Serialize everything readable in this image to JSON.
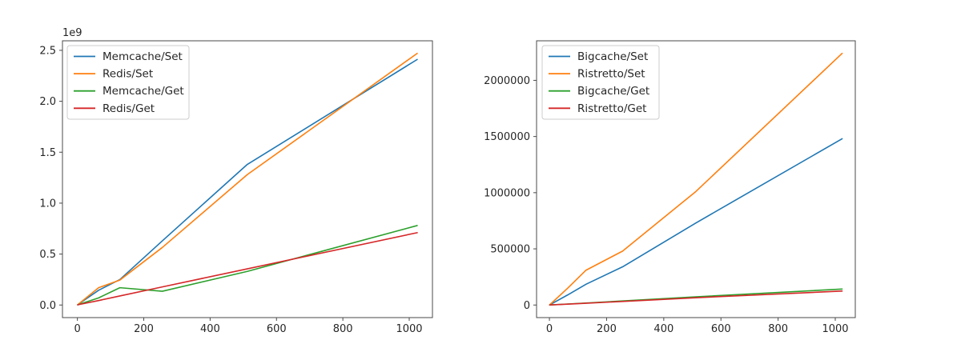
{
  "figure": {
    "background": "#ffffff",
    "text_color": "#262626",
    "spine_color": "#4a4a4a",
    "legend_border_color": "#cccccc",
    "legend_background": "rgba(255,255,255,0.85)"
  },
  "chart_data": [
    {
      "type": "line",
      "title": "",
      "offset_label": "1e9",
      "xlabel": "",
      "ylabel": "",
      "legend_position": "upper left",
      "grid": false,
      "xlim": [
        -45,
        1070
      ],
      "ylim": [
        -123500000,
        2593500000
      ],
      "x": [
        1,
        64,
        128,
        256,
        512,
        1024
      ],
      "series": [
        {
          "name": "Memcache/Set",
          "color": "#1f77b4",
          "values": [
            3000000,
            145000000,
            250000000,
            630000000,
            1380000000,
            2410000000
          ]
        },
        {
          "name": "Redis/Set",
          "color": "#ff7f0e",
          "values": [
            3000000,
            170000000,
            245000000,
            565000000,
            1280000000,
            2470000000
          ]
        },
        {
          "name": "Memcache/Get",
          "color": "#2ca02c",
          "values": [
            2000000,
            70000000,
            170000000,
            135000000,
            330000000,
            780000000
          ]
        },
        {
          "name": "Redis/Get",
          "color": "#d62728",
          "values": [
            2000000,
            44000000,
            89000000,
            178000000,
            355000000,
            710000000
          ]
        }
      ],
      "xticks": [
        {
          "label": "0",
          "value": 0
        },
        {
          "label": "200",
          "value": 200
        },
        {
          "label": "400",
          "value": 400
        },
        {
          "label": "600",
          "value": 600
        },
        {
          "label": "800",
          "value": 800
        },
        {
          "label": "1000",
          "value": 1000
        }
      ],
      "yticks": [
        {
          "label": "0.0",
          "value": 0
        },
        {
          "label": "0.5",
          "value": 500000000
        },
        {
          "label": "1.0",
          "value": 1000000000
        },
        {
          "label": "1.5",
          "value": 1500000000
        },
        {
          "label": "2.0",
          "value": 2000000000
        },
        {
          "label": "2.5",
          "value": 2500000000
        }
      ]
    },
    {
      "type": "line",
      "title": "",
      "offset_label": "",
      "xlabel": "",
      "ylabel": "",
      "legend_position": "upper left",
      "grid": false,
      "xlim": [
        -45,
        1070
      ],
      "ylim": [
        -112000,
        2352000
      ],
      "x": [
        1,
        64,
        128,
        256,
        512,
        1024
      ],
      "series": [
        {
          "name": "Bigcache/Set",
          "color": "#1f77b4",
          "values": [
            1500,
            90000,
            185000,
            340000,
            730000,
            1480000
          ]
        },
        {
          "name": "Ristretto/Set",
          "color": "#ff7f0e",
          "values": [
            2000,
            150000,
            310000,
            480000,
            1010000,
            2240000
          ]
        },
        {
          "name": "Bigcache/Get",
          "color": "#2ca02c",
          "values": [
            500,
            9000,
            18000,
            36000,
            73000,
            142000
          ]
        },
        {
          "name": "Ristretto/Get",
          "color": "#d62728",
          "values": [
            400,
            8000,
            16000,
            32000,
            65000,
            124000
          ]
        }
      ],
      "xticks": [
        {
          "label": "0",
          "value": 0
        },
        {
          "label": "200",
          "value": 200
        },
        {
          "label": "400",
          "value": 400
        },
        {
          "label": "600",
          "value": 600
        },
        {
          "label": "800",
          "value": 800
        },
        {
          "label": "1000",
          "value": 1000
        }
      ],
      "yticks": [
        {
          "label": "0",
          "value": 0
        },
        {
          "label": "500000",
          "value": 500000
        },
        {
          "label": "1000000",
          "value": 1000000
        },
        {
          "label": "1500000",
          "value": 1500000
        },
        {
          "label": "2000000",
          "value": 2000000
        }
      ]
    }
  ]
}
